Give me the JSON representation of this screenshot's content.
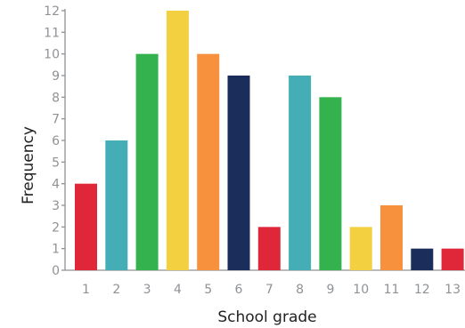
{
  "chart_data": {
    "type": "bar",
    "title": "",
    "xlabel": "School grade",
    "ylabel": "Frequency",
    "categories": [
      "1",
      "2",
      "3",
      "4",
      "5",
      "6",
      "7",
      "8",
      "9",
      "10",
      "11",
      "12",
      "13"
    ],
    "values": [
      4,
      6,
      10,
      12,
      10,
      9,
      2,
      9,
      8,
      2,
      3,
      1,
      1
    ],
    "bar_colors": [
      "#e0273a",
      "#44adb6",
      "#34b24d",
      "#f2d03f",
      "#f7913d",
      "#1b2d5a",
      "#e0273a",
      "#44adb6",
      "#34b24d",
      "#f2d03f",
      "#f7913d",
      "#1b2d5a",
      "#e0273a"
    ],
    "ylim": [
      0,
      12
    ],
    "yticks": [
      "0",
      "1",
      "2",
      "3",
      "4",
      "5",
      "6",
      "7",
      "8",
      "9",
      "10",
      "11",
      "12"
    ],
    "grid": false,
    "legend": "none",
    "axis_color": "#8f9296"
  }
}
